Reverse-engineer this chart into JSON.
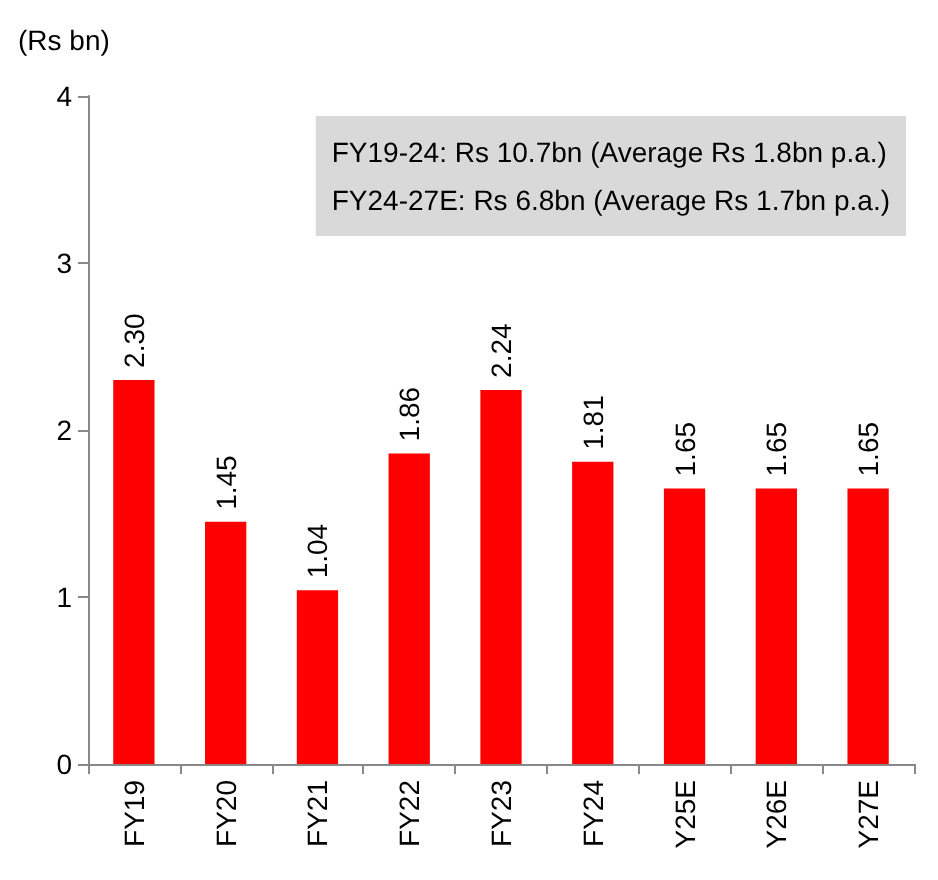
{
  "chart_data": {
    "type": "bar",
    "ylabel": "(Rs bn)",
    "categories": [
      "FY19",
      "FY20",
      "FY21",
      "FY22",
      "FY23",
      "FY24",
      "Y25E",
      "Y26E",
      "Y27E"
    ],
    "values": [
      2.3,
      1.45,
      1.04,
      1.86,
      2.24,
      1.81,
      1.65,
      1.65,
      1.65
    ],
    "value_labels": [
      "2.30",
      "1.45",
      "1.04",
      "1.86",
      "2.24",
      "1.81",
      "1.65",
      "1.65",
      "1.65"
    ],
    "color": "#ff0000",
    "ylim": [
      0,
      4
    ],
    "yticks": [
      0,
      1,
      2,
      3,
      4
    ],
    "grid": false,
    "annotations": [
      "FY19-24: Rs 10.7bn (Average Rs 1.8bn p.a.)",
      "FY24-27E: Rs 6.8bn (Average Rs 1.7bn p.a.)"
    ]
  }
}
